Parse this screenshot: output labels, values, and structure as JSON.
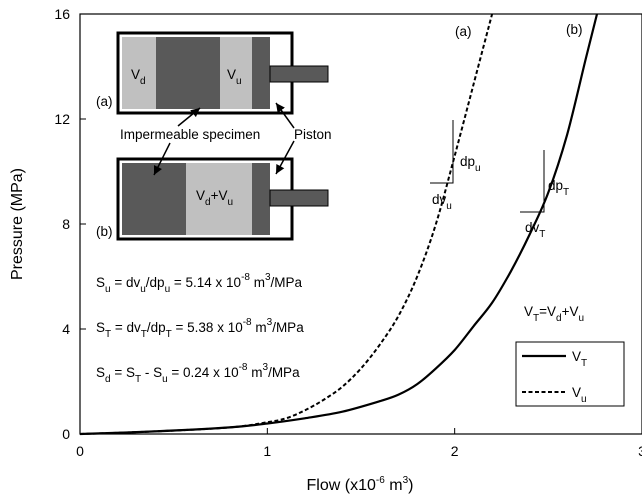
{
  "chart_data": {
    "type": "line",
    "xlabel": "Flow (x10",
    "xlabel_sup": "-6",
    "xlabel_unit": " m",
    "xlabel_unit_sup": "3",
    "xlabel_end": ")",
    "ylabel": "Pressure (MPa)",
    "xlim": [
      0,
      3
    ],
    "ylim": [
      0,
      16
    ],
    "x_ticks": [
      "0",
      "1",
      "2",
      "3"
    ],
    "y_ticks": [
      "0",
      "4",
      "8",
      "12",
      "16"
    ],
    "grid": false,
    "legend_position": "bottom-right",
    "series": [
      {
        "name": "V_T",
        "style": "solid",
        "curve_label": "(b)",
        "points": [
          [
            0,
            0
          ],
          [
            0.4,
            0.1
          ],
          [
            0.8,
            0.25
          ],
          [
            1.0,
            0.4
          ],
          [
            1.2,
            0.6
          ],
          [
            1.4,
            0.85
          ],
          [
            1.6,
            1.25
          ],
          [
            1.7,
            1.5
          ],
          [
            1.8,
            1.9
          ],
          [
            1.9,
            2.5
          ],
          [
            2.0,
            3.2
          ],
          [
            2.1,
            4.1
          ],
          [
            2.2,
            5.0
          ],
          [
            2.3,
            6.2
          ],
          [
            2.4,
            7.6
          ],
          [
            2.5,
            9.2
          ],
          [
            2.6,
            11.4
          ],
          [
            2.7,
            14.3
          ],
          [
            2.76,
            16.0
          ]
        ]
      },
      {
        "name": "V_u",
        "style": "dashed",
        "curve_label": "(a)",
        "points": [
          [
            0,
            0
          ],
          [
            0.4,
            0.1
          ],
          [
            0.8,
            0.25
          ],
          [
            1.0,
            0.45
          ],
          [
            1.1,
            0.6
          ],
          [
            1.2,
            0.9
          ],
          [
            1.3,
            1.3
          ],
          [
            1.4,
            1.8
          ],
          [
            1.5,
            2.5
          ],
          [
            1.6,
            3.4
          ],
          [
            1.7,
            4.5
          ],
          [
            1.8,
            6.0
          ],
          [
            1.9,
            8.0
          ],
          [
            2.0,
            10.6
          ],
          [
            2.1,
            13.3
          ],
          [
            2.2,
            16.0
          ]
        ]
      }
    ],
    "annotations": {
      "curve_label_a": "(a)",
      "curve_label_b": "(b)",
      "dpu": {
        "base": "dp",
        "sub": "u"
      },
      "dvu": {
        "base": "dv",
        "sub": "u"
      },
      "dpT": {
        "base": "dp",
        "sub": "T"
      },
      "dvT": {
        "base": "dv",
        "sub": "T"
      },
      "relation": {
        "a": "V",
        "a_sub": "T",
        "b": "=V",
        "b_sub": "d",
        "c": "+V",
        "c_sub": "u"
      },
      "su": {
        "a": "S",
        "a_sub": "u",
        "b": " = dv",
        "b_sub": "u",
        "c": "/dp",
        "c_sub": "u",
        "d": " = 5.14 x 10",
        "d_sup": "-8",
        "e": " m",
        "e_sup": "3",
        "f": "/MPa"
      },
      "st": {
        "a": "S",
        "a_sub": "T",
        "b": " = dv",
        "b_sub": "T",
        "c": "/dp",
        "c_sub": "T",
        "d": " = 5.38 x 10",
        "d_sup": "-8",
        "e": " m",
        "e_sup": "3",
        "f": "/MPa"
      },
      "sd": {
        "a": "S",
        "a_sub": "d",
        "b": " = S",
        "b_sub": "T",
        "c": " - S",
        "c_sub": "u",
        "d": " = 0.24 x 10",
        "d_sup": "-8",
        "e": " m",
        "e_sup": "3",
        "f": "/MPa"
      }
    },
    "legend": [
      {
        "base": "V",
        "sub": "T",
        "style": "solid"
      },
      {
        "base": "V",
        "sub": "u",
        "style": "dashed"
      }
    ],
    "inset": {
      "label_a": "(a)",
      "label_b": "(b)",
      "vd": {
        "base": "V",
        "sub": "d"
      },
      "vu": {
        "base": "V",
        "sub": "u"
      },
      "vdu": {
        "a": "V",
        "a_sub": "d",
        "b": "+V",
        "b_sub": "u"
      },
      "specimen_label": "Impermeable specimen",
      "piston_label": "Piston",
      "colors": {
        "dark": "#595959",
        "light": "#c0c0c0",
        "outline": "#000000"
      }
    }
  }
}
